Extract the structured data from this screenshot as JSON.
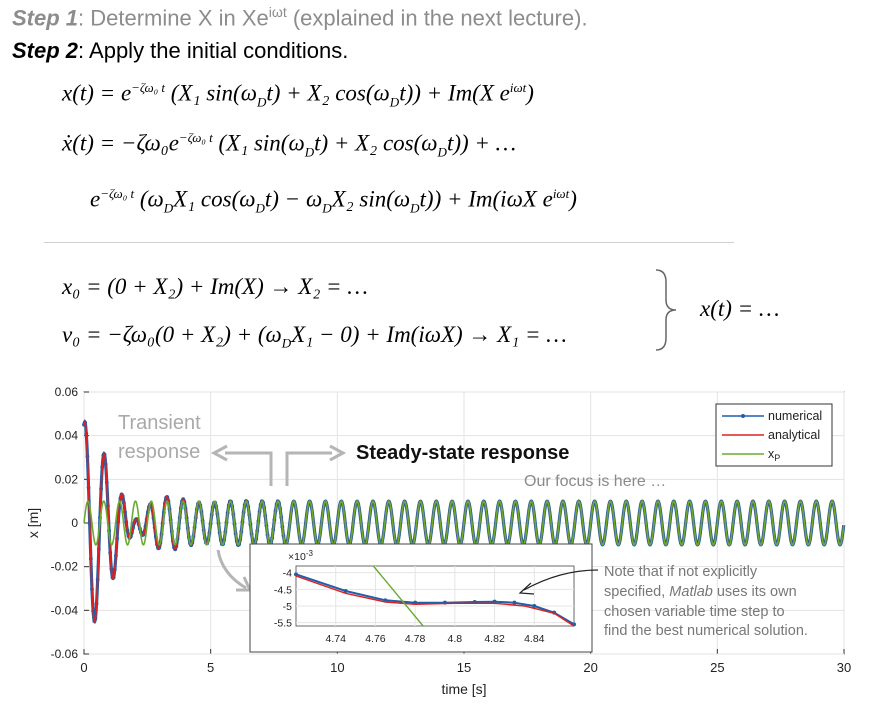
{
  "step1": {
    "label": "Step 1",
    "text": ": Determine X in Xe",
    "sup": "iωt",
    "rest": " (explained in the next lecture)."
  },
  "step2": {
    "label": "Step 2",
    "text": ": Apply the initial conditions."
  },
  "equations": {
    "x_t": {
      "lhs": "x(t) = e",
      "exp": "−ζω₀ t",
      "rhs": " (X₁ sin(ω",
      "sub_d": "D",
      "rhs2": "t) + X₂ cos(ω",
      "rhs3": "t)) + Im(X e",
      "exp2": "iωt",
      "end": ")"
    },
    "xdot_t": {
      "lhs": "ẋ(t) = −ζω₀e",
      "exp": "−ζω₀ t",
      "rhs": " (X₁ sin(ω",
      "sub_d": "D",
      "rhs2": "t) + X₂ cos(ω",
      "rhs3": "t)) + …"
    },
    "xdot_cont": {
      "lhs": "e",
      "exp": "−ζω₀ t",
      "rhs": " (ω",
      "sub_d": "D",
      "rhs2": "X₁ cos(ω",
      "rhs3": "t) − ω",
      "rhs4": "X₂ sin(ω",
      "rhs5": "t)) + Im(iωX e",
      "exp2": "iωt",
      "end": ")"
    },
    "x0": "x₀ = (0 + X₂) + Im(X) → X₂ = …",
    "v0": {
      "a": "v₀ = −ζω₀(0 + X₂) + (ω",
      "sub_d": "D",
      "b": "X₁ − 0) + Im(iωX) → X₁ = …"
    },
    "result": "x(t) = …"
  },
  "chart_data": {
    "type": "line",
    "xlabel": "time [s]",
    "ylabel": "x [m]",
    "xlim": [
      0,
      30
    ],
    "ylim": [
      -0.06,
      0.06
    ],
    "xticks": [
      "0",
      "5",
      "10",
      "15",
      "20",
      "25",
      "30"
    ],
    "yticks": [
      "0.06",
      "0.04",
      "0.02",
      "0",
      "-0.02",
      "-0.04",
      "-0.06"
    ],
    "grid": true,
    "legend_placement": "top-right",
    "steady_amplitude": 0.01,
    "series": [
      {
        "name": "numerical",
        "color": "#1f5fa8"
      },
      {
        "name": "analytical",
        "color": "#e02020"
      },
      {
        "name": "x",
        "subscript": "P",
        "color": "#6aab2e"
      }
    ],
    "annotations": {
      "transient": "Transient response",
      "transient_line1": "Transient",
      "transient_line2": "response",
      "steady": "Steady-state response",
      "focus": "Our focus is here …",
      "note_line1": "Note that if not explicitly",
      "note_line2a": "specified, ",
      "note_line2b": "Matlab",
      "note_line2c": " uses its own",
      "note_line3": "chosen variable time step to",
      "note_line4": "find the best numerical solution."
    },
    "inset": {
      "xlim": [
        4.72,
        4.86
      ],
      "ylim": [
        -5.6,
        -3.8
      ],
      "scale_label": "×10",
      "scale_exp": "-3",
      "xticks": [
        "4.74",
        "4.76",
        "4.78",
        "4.8",
        "4.82",
        "4.84"
      ],
      "yticks": [
        "-4",
        "-4.5",
        "-5",
        "-5.5"
      ],
      "numerical_points": [
        [
          4.72,
          -4.05
        ],
        [
          4.745,
          -4.55
        ],
        [
          4.765,
          -4.83
        ],
        [
          4.78,
          -4.9
        ],
        [
          4.795,
          -4.9
        ],
        [
          4.81,
          -4.88
        ],
        [
          4.82,
          -4.87
        ],
        [
          4.83,
          -4.9
        ],
        [
          4.84,
          -5.0
        ],
        [
          4.85,
          -5.2
        ],
        [
          4.86,
          -5.55
        ]
      ],
      "analytical_points": [
        [
          4.72,
          -4.1
        ],
        [
          4.745,
          -4.62
        ],
        [
          4.765,
          -4.88
        ],
        [
          4.78,
          -4.95
        ],
        [
          4.8,
          -4.92
        ],
        [
          4.82,
          -4.92
        ],
        [
          4.835,
          -5.0
        ],
        [
          4.85,
          -5.22
        ],
        [
          4.86,
          -5.6
        ]
      ],
      "xp_points": [
        [
          4.759,
          -3.8
        ],
        [
          4.784,
          -5.6
        ]
      ]
    }
  }
}
